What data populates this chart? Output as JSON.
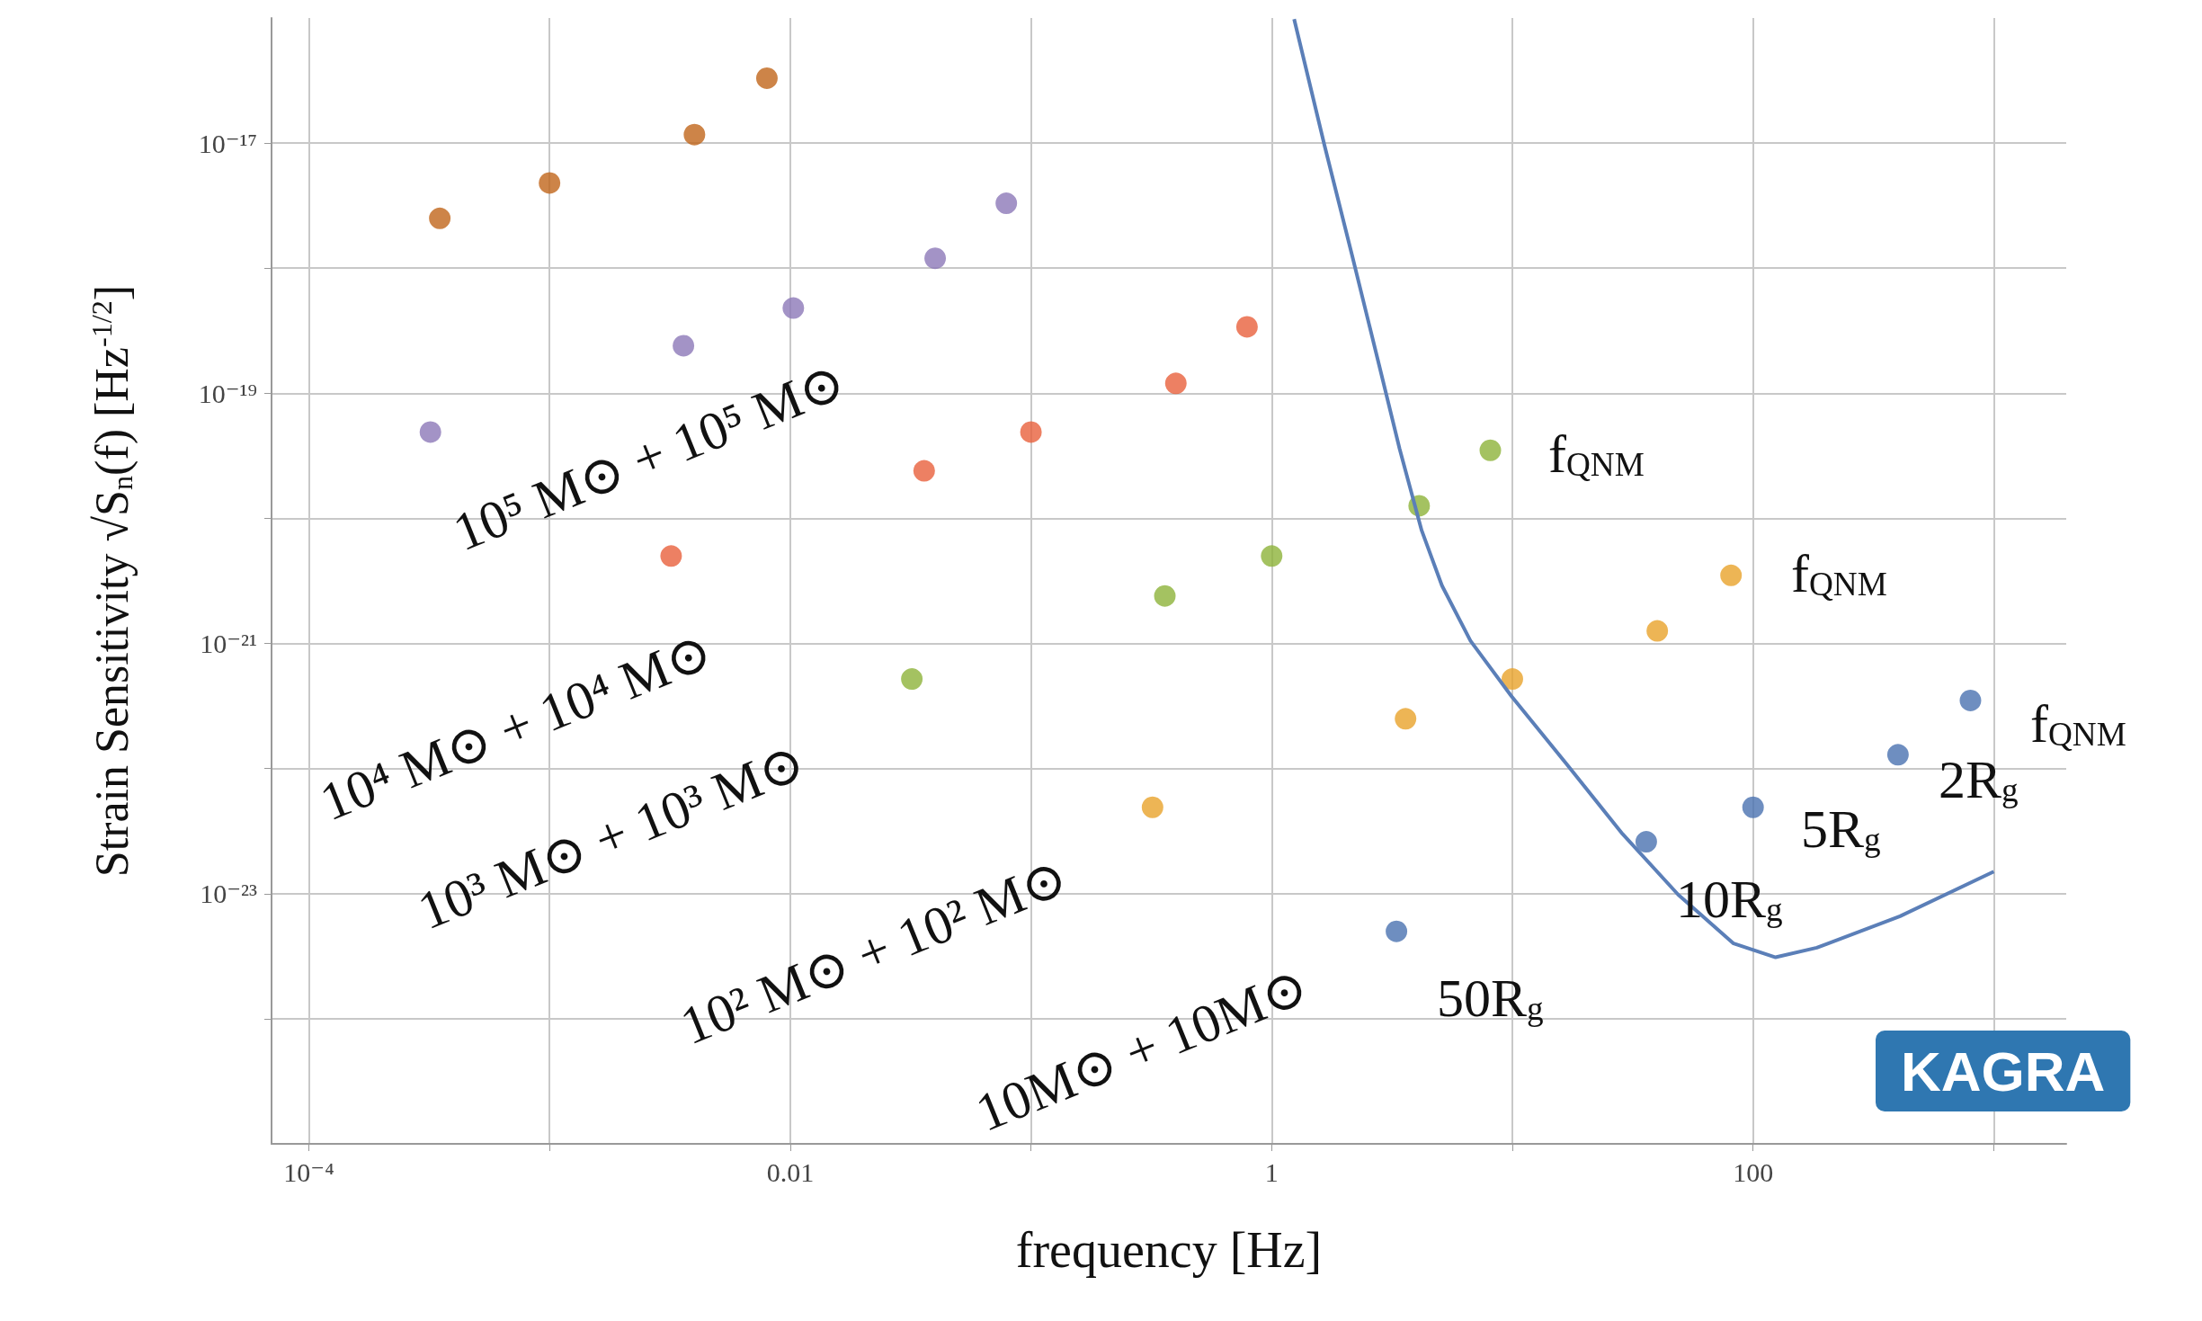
{
  "chart_data": {
    "type": "scatter",
    "xlabel": "frequency [Hz]",
    "ylabel": "Strain Sensitivity √S$_{n}$(f) [Hz$^{-1/2}$]",
    "log": "xy",
    "grid": true,
    "marker": "circle",
    "xlim": [
      7e-05,
      2000
    ],
    "ylim": [
      1e-25,
      1e-16
    ],
    "xticks": [
      {
        "value": 0.0001,
        "label": "10⁻⁴"
      },
      {
        "value": 0.001,
        "label": null
      },
      {
        "value": 0.01,
        "label": "0.01"
      },
      {
        "value": 0.1,
        "label": null
      },
      {
        "value": 1,
        "label": "1"
      },
      {
        "value": 10,
        "label": null
      },
      {
        "value": 100,
        "label": "100"
      },
      {
        "value": 1000,
        "label": null
      }
    ],
    "yticks": [
      {
        "value": 1e-24,
        "label": null
      },
      {
        "value": 1e-23,
        "label": "10⁻²³"
      },
      {
        "value": 1e-22,
        "label": null
      },
      {
        "value": 1e-21,
        "label": "10⁻²¹"
      },
      {
        "value": 1e-20,
        "label": null
      },
      {
        "value": 1e-19,
        "label": "10⁻¹⁹"
      },
      {
        "value": 1e-18,
        "label": null
      },
      {
        "value": 1e-17,
        "label": "10⁻¹⁷"
      }
    ],
    "series": [
      {
        "color": "#c0651a",
        "x": [
          0.00035,
          0.001,
          0.004,
          0.008
        ],
        "values": [
          2.5e-18,
          4.8e-18,
          1.17e-17,
          3.3e-17
        ]
      },
      {
        "color": "#8c78b8",
        "x": [
          0.00032,
          0.0036,
          0.0103,
          0.04,
          0.079
        ],
        "values": [
          4.9e-20,
          2.4e-19,
          4.8e-19,
          1.2e-18,
          3.3e-18
        ]
      },
      {
        "color": "#e8603c",
        "x": [
          0.0032,
          0.036,
          0.1,
          0.4,
          0.79
        ],
        "values": [
          5e-21,
          2.4e-20,
          4.9e-20,
          1.2e-19,
          3.4e-19
        ]
      },
      {
        "color": "#8db33a",
        "x": [
          0.032,
          0.36,
          1.0,
          4.1,
          8.1
        ],
        "values": [
          5.2e-22,
          2.4e-21,
          5e-21,
          1.26e-20,
          3.5e-20
        ]
      },
      {
        "color": "#e8a22a",
        "x": [
          0.32,
          3.6,
          10,
          40,
          81
        ],
        "values": [
          4.9e-23,
          2.5e-22,
          5.2e-22,
          1.26e-21,
          3.5e-21
        ]
      },
      {
        "color": "#4a72b0",
        "x": [
          3.3,
          36,
          100,
          400,
          800
        ],
        "values": [
          5e-24,
          2.6e-23,
          4.9e-23,
          1.29e-22,
          3.5e-22
        ]
      },
      {
        "type": "line",
        "color": "#5b7fb8",
        "line_style": "solid",
        "marker": "none",
        "x": [
          1.24,
          1.66,
          2.16,
          2.8,
          3.4,
          4.2,
          5.1,
          6.7,
          9.9,
          16.9,
          28.7,
          48.9,
          83,
          124,
          184,
          408,
          1000
        ],
        "values": [
          9.8e-17,
          9.5e-18,
          1.26e-18,
          1.66e-19,
          3.6e-20,
          8e-21,
          2.9e-21,
          1.05e-21,
          3.8e-22,
          1.07e-22,
          3e-23,
          9.8e-24,
          4e-24,
          3.1e-24,
          3.7e-24,
          6.6e-24,
          1.5e-23
        ]
      }
    ],
    "annotations": [
      "10⁵ M⊙ + 10⁵ M⊙",
      "10⁴ M⊙ + 10⁴ M⊙",
      "10³ M⊙ + 10³ M⊙",
      "10² M⊙ + 10² M⊙",
      "10M⊙ + 10M⊙",
      "f$_{QNM}$",
      "f$_{QNM}$",
      "f$_{QNM}$",
      "50R$_{g}$",
      "10R$_{g}$",
      "5R$_{g}$",
      "2R$_{g}$",
      "KAGRA"
    ]
  }
}
